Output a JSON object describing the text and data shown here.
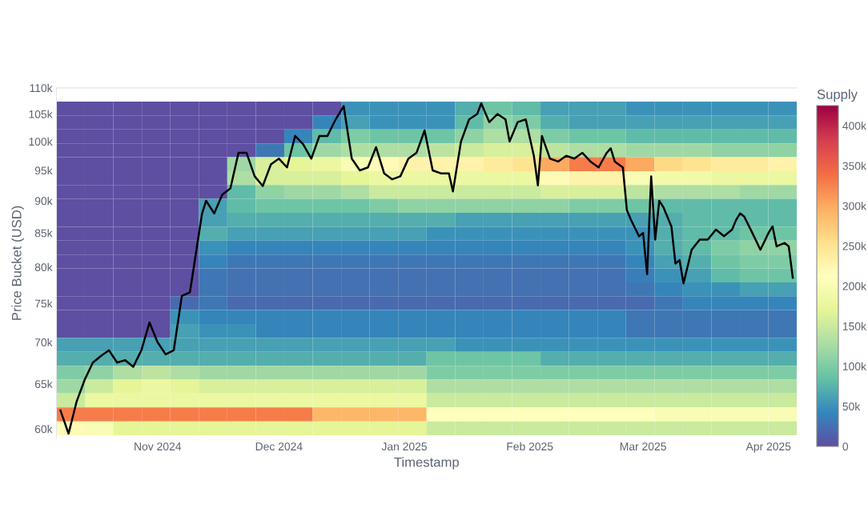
{
  "chart_data": [
    {
      "type": "heatmap",
      "clabel": "Supply",
      "tick_labels": false,
      "categories": [
        null,
        null,
        null,
        null,
        null,
        null,
        null,
        null,
        null,
        null,
        null,
        null,
        null,
        null,
        null,
        null,
        null,
        null,
        null,
        null,
        null,
        null,
        null,
        null,
        null,
        null
      ],
      "y_categories": [
        null,
        null,
        null,
        null,
        null,
        null,
        null,
        null,
        null,
        null,
        null,
        null,
        null,
        null,
        null,
        null,
        null,
        null,
        null,
        null,
        null,
        null,
        null,
        null
      ],
      "cells": [
        [
          0,
          0,
          0,
          0,
          0,
          0,
          0,
          0,
          0,
          0,
          50000,
          50000,
          50000,
          50000,
          70000,
          90000,
          80000,
          60000,
          60000,
          60000,
          50000,
          50000,
          50000,
          50000,
          50000,
          50000
        ],
        [
          0,
          0,
          0,
          0,
          0,
          0,
          0,
          0,
          0,
          40000,
          60000,
          50000,
          50000,
          50000,
          80000,
          110000,
          100000,
          70000,
          60000,
          60000,
          60000,
          60000,
          60000,
          60000,
          60000,
          60000
        ],
        [
          0,
          0,
          0,
          0,
          0,
          0,
          0,
          0,
          40000,
          80000,
          100000,
          90000,
          90000,
          90000,
          110000,
          130000,
          130000,
          100000,
          90000,
          90000,
          80000,
          80000,
          80000,
          80000,
          80000,
          80000
        ],
        [
          0,
          0,
          0,
          0,
          0,
          0,
          0,
          30000,
          90000,
          120000,
          130000,
          130000,
          130000,
          140000,
          150000,
          160000,
          160000,
          140000,
          130000,
          130000,
          120000,
          120000,
          120000,
          110000,
          110000,
          110000
        ],
        [
          0,
          0,
          0,
          0,
          0,
          0,
          120000,
          160000,
          170000,
          180000,
          200000,
          220000,
          230000,
          230000,
          230000,
          240000,
          250000,
          300000,
          330000,
          330000,
          300000,
          260000,
          250000,
          240000,
          240000,
          230000
        ],
        [
          0,
          0,
          0,
          0,
          0,
          0,
          130000,
          160000,
          160000,
          160000,
          170000,
          180000,
          180000,
          180000,
          180000,
          180000,
          180000,
          220000,
          230000,
          230000,
          200000,
          190000,
          190000,
          180000,
          180000,
          180000
        ],
        [
          0,
          0,
          0,
          0,
          0,
          0,
          80000,
          110000,
          120000,
          120000,
          130000,
          150000,
          150000,
          150000,
          150000,
          150000,
          150000,
          160000,
          160000,
          160000,
          140000,
          130000,
          130000,
          130000,
          120000,
          120000
        ],
        [
          0,
          0,
          0,
          0,
          0,
          60000,
          80000,
          90000,
          90000,
          90000,
          90000,
          100000,
          110000,
          110000,
          110000,
          110000,
          110000,
          110000,
          100000,
          100000,
          90000,
          80000,
          80000,
          80000,
          80000,
          80000
        ],
        [
          0,
          0,
          0,
          0,
          0,
          60000,
          70000,
          70000,
          70000,
          70000,
          70000,
          70000,
          70000,
          70000,
          60000,
          60000,
          60000,
          60000,
          60000,
          60000,
          60000,
          70000,
          80000,
          80000,
          80000,
          80000
        ],
        [
          0,
          0,
          0,
          0,
          0,
          70000,
          60000,
          60000,
          60000,
          60000,
          60000,
          60000,
          60000,
          50000,
          50000,
          50000,
          50000,
          50000,
          50000,
          50000,
          50000,
          70000,
          80000,
          80000,
          90000,
          90000
        ],
        [
          0,
          0,
          0,
          0,
          0,
          50000,
          40000,
          40000,
          40000,
          40000,
          40000,
          40000,
          40000,
          40000,
          40000,
          40000,
          40000,
          40000,
          40000,
          40000,
          50000,
          70000,
          80000,
          100000,
          110000,
          110000
        ],
        [
          0,
          0,
          0,
          0,
          0,
          40000,
          30000,
          30000,
          30000,
          30000,
          30000,
          30000,
          30000,
          30000,
          30000,
          30000,
          30000,
          30000,
          30000,
          30000,
          40000,
          60000,
          70000,
          90000,
          100000,
          100000
        ],
        [
          0,
          0,
          0,
          0,
          0,
          30000,
          25000,
          25000,
          25000,
          25000,
          25000,
          25000,
          25000,
          25000,
          25000,
          25000,
          25000,
          25000,
          25000,
          25000,
          35000,
          50000,
          60000,
          80000,
          90000,
          90000
        ],
        [
          0,
          0,
          0,
          0,
          0,
          30000,
          25000,
          25000,
          25000,
          25000,
          25000,
          25000,
          25000,
          25000,
          25000,
          25000,
          25000,
          25000,
          25000,
          25000,
          30000,
          40000,
          50000,
          50000,
          60000,
          60000
        ],
        [
          0,
          0,
          0,
          0,
          20000,
          30000,
          20000,
          20000,
          20000,
          20000,
          20000,
          20000,
          20000,
          20000,
          20000,
          20000,
          20000,
          20000,
          20000,
          20000,
          20000,
          30000,
          40000,
          40000,
          40000,
          40000
        ],
        [
          0,
          0,
          0,
          0,
          50000,
          40000,
          40000,
          40000,
          40000,
          40000,
          40000,
          40000,
          40000,
          40000,
          40000,
          40000,
          40000,
          40000,
          40000,
          40000,
          30000,
          30000,
          30000,
          30000,
          30000,
          30000
        ],
        [
          0,
          0,
          0,
          0,
          60000,
          50000,
          50000,
          40000,
          40000,
          40000,
          40000,
          40000,
          40000,
          40000,
          40000,
          40000,
          40000,
          40000,
          40000,
          40000,
          30000,
          30000,
          30000,
          30000,
          30000,
          30000
        ],
        [
          60000,
          60000,
          60000,
          60000,
          60000,
          60000,
          60000,
          60000,
          60000,
          60000,
          60000,
          60000,
          60000,
          60000,
          50000,
          50000,
          50000,
          50000,
          50000,
          50000,
          50000,
          50000,
          50000,
          50000,
          50000,
          50000
        ],
        [
          70000,
          70000,
          70000,
          70000,
          70000,
          70000,
          70000,
          70000,
          70000,
          70000,
          70000,
          70000,
          70000,
          90000,
          90000,
          90000,
          90000,
          70000,
          70000,
          70000,
          70000,
          70000,
          70000,
          70000,
          70000,
          70000
        ],
        [
          100000,
          110000,
          130000,
          140000,
          130000,
          120000,
          120000,
          120000,
          120000,
          120000,
          120000,
          120000,
          120000,
          100000,
          100000,
          100000,
          100000,
          100000,
          100000,
          100000,
          100000,
          100000,
          100000,
          100000,
          100000,
          100000
        ],
        [
          120000,
          150000,
          170000,
          180000,
          170000,
          160000,
          160000,
          160000,
          160000,
          160000,
          160000,
          160000,
          160000,
          130000,
          130000,
          130000,
          130000,
          130000,
          130000,
          130000,
          130000,
          130000,
          130000,
          130000,
          130000,
          130000
        ],
        [
          150000,
          180000,
          180000,
          180000,
          180000,
          180000,
          180000,
          180000,
          180000,
          180000,
          180000,
          180000,
          180000,
          150000,
          150000,
          150000,
          150000,
          150000,
          150000,
          150000,
          150000,
          150000,
          150000,
          150000,
          150000,
          150000
        ],
        [
          330000,
          330000,
          330000,
          330000,
          330000,
          330000,
          330000,
          330000,
          330000,
          290000,
          290000,
          290000,
          290000,
          210000,
          210000,
          210000,
          210000,
          210000,
          210000,
          210000,
          210000,
          200000,
          200000,
          200000,
          200000,
          200000
        ],
        [
          220000,
          200000,
          170000,
          170000,
          170000,
          170000,
          170000,
          170000,
          170000,
          170000,
          170000,
          170000,
          170000,
          150000,
          150000,
          150000,
          150000,
          150000,
          150000,
          150000,
          150000,
          150000,
          150000,
          150000,
          150000,
          150000
        ]
      ],
      "clim": [
        0,
        425000
      ],
      "cticks": [
        0,
        {
          "value": 50000,
          "label": "50k"
        },
        {
          "value": 100000,
          "label": "100k"
        },
        {
          "value": 150000,
          "label": "150k"
        },
        {
          "value": 200000,
          "label": "200k"
        },
        {
          "value": 250000,
          "label": "250k"
        },
        {
          "value": 300000,
          "label": "300k"
        },
        {
          "value": 350000,
          "label": "350k"
        },
        {
          "value": 400000,
          "label": "400k"
        }
      ]
    },
    {
      "type": "line",
      "xlabel": "Timestamp",
      "ylabel": "Price Bucket (USD)",
      "log": "y",
      "xlim": [
        "2024-10-07",
        "2025-04-08"
      ],
      "xticks": [
        {
          "value": "2024-11-01",
          "label": "Nov 2024"
        },
        {
          "value": "2024-12-01",
          "label": "Dec 2024"
        },
        {
          "value": "2025-01-01",
          "label": "Jan 2025"
        },
        {
          "value": "2025-02-01",
          "label": "Feb 2025"
        },
        {
          "value": "2025-03-01",
          "label": "Mar 2025"
        },
        {
          "value": "2025-04-01",
          "label": "Apr 2025"
        }
      ],
      "ylim": [
        59000,
        110000
      ],
      "yticks": [
        {
          "value": 60000,
          "label": "60k"
        },
        {
          "value": 65000,
          "label": "65k"
        },
        {
          "value": 70000,
          "label": "70k"
        },
        {
          "value": 75000,
          "label": "75k"
        },
        {
          "value": 80000,
          "label": "80k"
        },
        {
          "value": 85000,
          "label": "85k"
        },
        {
          "value": 90000,
          "label": "90k"
        },
        {
          "value": 95000,
          "label": "95k"
        },
        {
          "value": 100000,
          "label": "100k"
        },
        {
          "value": 105000,
          "label": "105k"
        },
        {
          "value": 110000,
          "label": "110k"
        }
      ],
      "series": [
        {
          "type": "line",
          "color": "#000000",
          "x": [
            "2024-10-08",
            "2024-10-10",
            "2024-10-12",
            "2024-10-14",
            "2024-10-16",
            "2024-10-18",
            "2024-10-20",
            "2024-10-22",
            "2024-10-24",
            "2024-10-26",
            "2024-10-28",
            "2024-10-30",
            "2024-11-01",
            "2024-11-03",
            "2024-11-05",
            "2024-11-07",
            "2024-11-09",
            "2024-11-11",
            "2024-11-12",
            "2024-11-13",
            "2024-11-15",
            "2024-11-17",
            "2024-11-19",
            "2024-11-21",
            "2024-11-23",
            "2024-11-25",
            "2024-11-27",
            "2024-11-29",
            "2024-12-01",
            "2024-12-03",
            "2024-12-05",
            "2024-12-07",
            "2024-12-09",
            "2024-12-11",
            "2024-12-13",
            "2024-12-15",
            "2024-12-17",
            "2024-12-19",
            "2024-12-21",
            "2024-12-23",
            "2024-12-25",
            "2024-12-27",
            "2024-12-29",
            "2024-12-31",
            "2025-01-02",
            "2025-01-04",
            "2025-01-06",
            "2025-01-08",
            "2025-01-10",
            "2025-01-12",
            "2025-01-13",
            "2025-01-15",
            "2025-01-17",
            "2025-01-19",
            "2025-01-20",
            "2025-01-22",
            "2025-01-24",
            "2025-01-26",
            "2025-01-27",
            "2025-01-29",
            "2025-01-31",
            "2025-02-02",
            "2025-02-03",
            "2025-02-04",
            "2025-02-06",
            "2025-02-08",
            "2025-02-10",
            "2025-02-12",
            "2025-02-14",
            "2025-02-16",
            "2025-02-18",
            "2025-02-20",
            "2025-02-21",
            "2025-02-22",
            "2025-02-24",
            "2025-02-25",
            "2025-02-26",
            "2025-02-28",
            "2025-03-01",
            "2025-03-02",
            "2025-03-03",
            "2025-03-04",
            "2025-03-05",
            "2025-03-06",
            "2025-03-08",
            "2025-03-09",
            "2025-03-10",
            "2025-03-11",
            "2025-03-13",
            "2025-03-15",
            "2025-03-17",
            "2025-03-19",
            "2025-03-21",
            "2025-03-23",
            "2025-03-24",
            "2025-03-25",
            "2025-03-26",
            "2025-03-28",
            "2025-03-30",
            "2025-04-01",
            "2025-04-02",
            "2025-04-03",
            "2025-04-05",
            "2025-04-06",
            "2025-04-07"
          ],
          "values": [
            62000,
            59500,
            63000,
            65500,
            67500,
            68300,
            69000,
            67500,
            67800,
            67000,
            69000,
            72500,
            70000,
            68500,
            69000,
            76000,
            76500,
            84000,
            88000,
            90000,
            88000,
            91000,
            92000,
            98000,
            98000,
            94000,
            92400,
            96000,
            97000,
            95500,
            101000,
            99500,
            97000,
            101000,
            101000,
            104000,
            106500,
            97000,
            95000,
            95500,
            99000,
            94500,
            93500,
            94000,
            97000,
            98000,
            102000,
            95000,
            94500,
            94500,
            91500,
            100000,
            104000,
            105000,
            107000,
            103500,
            105000,
            104000,
            100000,
            103500,
            104000,
            97500,
            92500,
            101000,
            97000,
            96500,
            97500,
            97000,
            98000,
            96500,
            95500,
            98000,
            98800,
            96500,
            95500,
            88500,
            87000,
            84500,
            85000,
            79000,
            94000,
            84000,
            90000,
            89000,
            86000,
            80500,
            81000,
            77700,
            82500,
            84000,
            84000,
            85500,
            84500,
            85500,
            87000,
            88000,
            87500,
            85000,
            82500,
            85000,
            86000,
            83000,
            83500,
            83000,
            78500
          ]
        }
      ]
    }
  ]
}
